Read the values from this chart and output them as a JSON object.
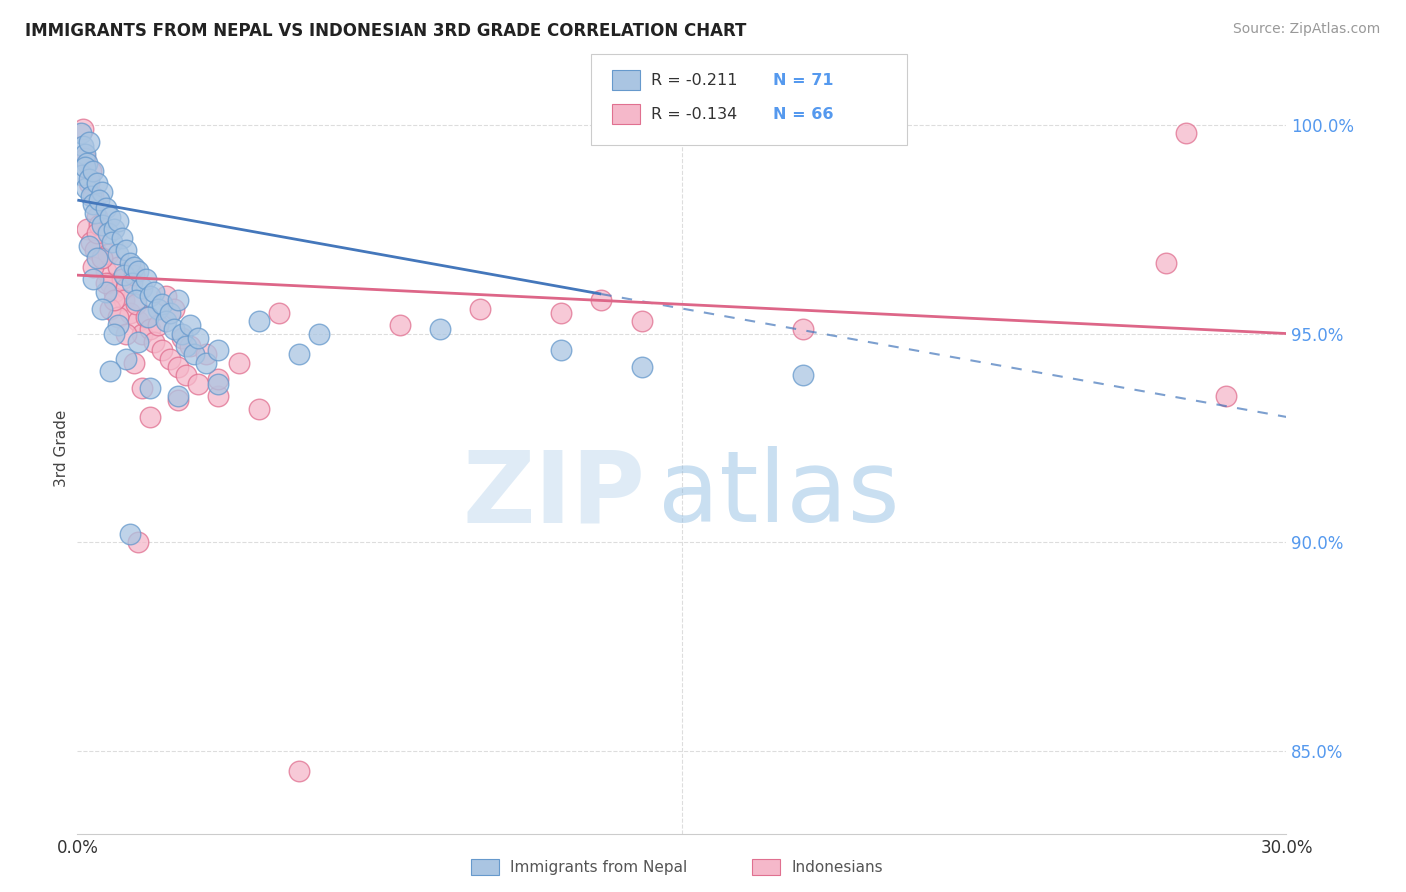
{
  "title": "IMMIGRANTS FROM NEPAL VS INDONESIAN 3RD GRADE CORRELATION CHART",
  "source": "Source: ZipAtlas.com",
  "ylabel": "3rd Grade",
  "x_min": 0.0,
  "x_max": 30.0,
  "y_min": 83.0,
  "y_max": 101.5,
  "legend_r1": "-0.211",
  "legend_n1": "71",
  "legend_r2": "-0.134",
  "legend_n2": "66",
  "nepal_color": "#aac5e2",
  "nepal_edge": "#6699cc",
  "indo_color": "#f5b8ca",
  "indo_edge": "#e07090",
  "nepal_line_color": "#4477bb",
  "indo_line_color": "#dd6688",
  "nepal_line_y0": 98.2,
  "nepal_line_y30": 93.0,
  "indo_line_y0": 96.4,
  "indo_line_y30": 95.0,
  "nepal_solid_end_x": 13.0,
  "watermark_zip": "ZIP",
  "watermark_atlas": "atlas",
  "right_tick_color": "#5599ee",
  "grid_color": "#dddddd",
  "nepal_points": [
    [
      0.1,
      99.8
    ],
    [
      0.15,
      99.5
    ],
    [
      0.2,
      99.3
    ],
    [
      0.25,
      99.1
    ],
    [
      0.3,
      99.6
    ],
    [
      0.12,
      98.8
    ],
    [
      0.18,
      99.0
    ],
    [
      0.22,
      98.5
    ],
    [
      0.3,
      98.7
    ],
    [
      0.4,
      98.9
    ],
    [
      0.35,
      98.3
    ],
    [
      0.5,
      98.6
    ],
    [
      0.4,
      98.1
    ],
    [
      0.6,
      98.4
    ],
    [
      0.45,
      97.9
    ],
    [
      0.55,
      98.2
    ],
    [
      0.7,
      98.0
    ],
    [
      0.6,
      97.6
    ],
    [
      0.8,
      97.8
    ],
    [
      0.75,
      97.4
    ],
    [
      0.9,
      97.5
    ],
    [
      1.0,
      97.7
    ],
    [
      0.85,
      97.2
    ],
    [
      1.1,
      97.3
    ],
    [
      1.0,
      96.9
    ],
    [
      1.2,
      97.0
    ],
    [
      1.3,
      96.7
    ],
    [
      1.15,
      96.4
    ],
    [
      1.4,
      96.6
    ],
    [
      1.35,
      96.2
    ],
    [
      1.5,
      96.5
    ],
    [
      1.6,
      96.1
    ],
    [
      1.45,
      95.8
    ],
    [
      1.7,
      96.3
    ],
    [
      1.8,
      95.9
    ],
    [
      1.9,
      96.0
    ],
    [
      2.0,
      95.6
    ],
    [
      1.75,
      95.4
    ],
    [
      2.1,
      95.7
    ],
    [
      2.2,
      95.3
    ],
    [
      2.3,
      95.5
    ],
    [
      2.4,
      95.1
    ],
    [
      2.5,
      95.8
    ],
    [
      2.6,
      95.0
    ],
    [
      2.7,
      94.7
    ],
    [
      2.8,
      95.2
    ],
    [
      2.9,
      94.5
    ],
    [
      3.0,
      94.9
    ],
    [
      3.2,
      94.3
    ],
    [
      3.5,
      94.6
    ],
    [
      0.3,
      97.1
    ],
    [
      0.5,
      96.8
    ],
    [
      0.7,
      96.0
    ],
    [
      1.0,
      95.2
    ],
    [
      1.5,
      94.8
    ],
    [
      0.4,
      96.3
    ],
    [
      0.6,
      95.6
    ],
    [
      0.9,
      95.0
    ],
    [
      1.2,
      94.4
    ],
    [
      0.8,
      94.1
    ],
    [
      1.8,
      93.7
    ],
    [
      4.5,
      95.3
    ],
    [
      6.0,
      95.0
    ],
    [
      9.0,
      95.1
    ],
    [
      12.0,
      94.6
    ],
    [
      14.0,
      94.2
    ],
    [
      18.0,
      94.0
    ],
    [
      2.5,
      93.5
    ],
    [
      3.5,
      93.8
    ],
    [
      5.5,
      94.5
    ],
    [
      1.3,
      90.2
    ]
  ],
  "indo_points": [
    [
      0.15,
      99.9
    ],
    [
      0.2,
      99.2
    ],
    [
      0.3,
      98.6
    ],
    [
      0.4,
      98.3
    ],
    [
      0.5,
      97.8
    ],
    [
      0.25,
      97.5
    ],
    [
      0.35,
      97.2
    ],
    [
      0.45,
      97.0
    ],
    [
      0.6,
      96.8
    ],
    [
      0.55,
      97.6
    ],
    [
      0.7,
      96.5
    ],
    [
      0.8,
      96.2
    ],
    [
      0.75,
      96.9
    ],
    [
      0.9,
      96.0
    ],
    [
      1.0,
      96.6
    ],
    [
      1.1,
      96.3
    ],
    [
      1.2,
      96.1
    ],
    [
      1.15,
      95.8
    ],
    [
      1.3,
      95.5
    ],
    [
      1.4,
      96.4
    ],
    [
      1.5,
      95.3
    ],
    [
      1.6,
      95.0
    ],
    [
      1.45,
      95.7
    ],
    [
      1.7,
      95.4
    ],
    [
      1.8,
      95.1
    ],
    [
      1.9,
      94.8
    ],
    [
      2.0,
      95.2
    ],
    [
      2.1,
      94.6
    ],
    [
      2.2,
      95.9
    ],
    [
      2.3,
      94.4
    ],
    [
      2.4,
      95.6
    ],
    [
      2.5,
      94.2
    ],
    [
      2.6,
      94.9
    ],
    [
      2.7,
      94.0
    ],
    [
      2.8,
      94.7
    ],
    [
      3.0,
      93.8
    ],
    [
      3.2,
      94.5
    ],
    [
      3.5,
      93.5
    ],
    [
      4.0,
      94.3
    ],
    [
      4.5,
      93.2
    ],
    [
      0.4,
      96.6
    ],
    [
      0.6,
      96.8
    ],
    [
      0.8,
      95.6
    ],
    [
      1.0,
      95.4
    ],
    [
      1.2,
      95.0
    ],
    [
      0.5,
      97.4
    ],
    [
      0.7,
      96.2
    ],
    [
      0.9,
      95.8
    ],
    [
      1.4,
      94.3
    ],
    [
      1.6,
      93.7
    ],
    [
      0.35,
      98.9
    ],
    [
      1.8,
      93.0
    ],
    [
      2.5,
      93.4
    ],
    [
      3.5,
      93.9
    ],
    [
      5.0,
      95.5
    ],
    [
      8.0,
      95.2
    ],
    [
      12.0,
      95.5
    ],
    [
      14.0,
      95.3
    ],
    [
      18.0,
      95.1
    ],
    [
      27.5,
      99.8
    ],
    [
      27.0,
      96.7
    ],
    [
      10.0,
      95.6
    ],
    [
      28.5,
      93.5
    ],
    [
      5.5,
      84.5
    ],
    [
      1.5,
      90.0
    ],
    [
      13.0,
      95.8
    ]
  ]
}
